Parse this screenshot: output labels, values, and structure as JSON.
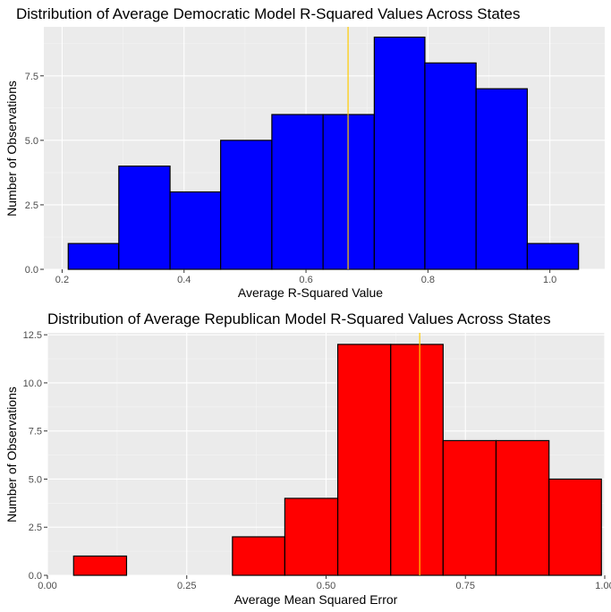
{
  "chart_data": [
    {
      "type": "bar",
      "title": "Distribution of Average Democratic Model R-Squared Values Across States",
      "xlabel": "Average R-Squared Value",
      "ylabel": "Number of Observations",
      "xlim": [
        0.17,
        1.09
      ],
      "ylim": [
        0,
        9.4
      ],
      "x_ticks": [
        0.2,
        0.4,
        0.6,
        0.8,
        1.0
      ],
      "x_tick_labels": [
        "0.2",
        "0.4",
        "0.6",
        "0.8",
        "1.0"
      ],
      "y_ticks": [
        0,
        2.5,
        5,
        7.5
      ],
      "y_tick_labels": [
        "0.0",
        "2.5",
        "5.0",
        "7.5"
      ],
      "bins": [
        {
          "x0": 0.21,
          "x1": 0.293,
          "count": 1
        },
        {
          "x0": 0.293,
          "x1": 0.377,
          "count": 4
        },
        {
          "x0": 0.377,
          "x1": 0.46,
          "count": 3
        },
        {
          "x0": 0.46,
          "x1": 0.544,
          "count": 5
        },
        {
          "x0": 0.544,
          "x1": 0.628,
          "count": 6
        },
        {
          "x0": 0.628,
          "x1": 0.712,
          "count": 6
        },
        {
          "x0": 0.712,
          "x1": 0.795,
          "count": 9
        },
        {
          "x0": 0.795,
          "x1": 0.879,
          "count": 8
        },
        {
          "x0": 0.879,
          "x1": 0.963,
          "count": 7
        },
        {
          "x0": 0.963,
          "x1": 1.047,
          "count": 1
        }
      ],
      "mean_line": 0.669,
      "fill": "#0000ff",
      "mean_line_color": "#ffcc00",
      "grid": true
    },
    {
      "type": "bar",
      "title": "Distribution of Average Republican Model R-Squared Values Across States",
      "xlabel": "Average Mean Squared Error",
      "ylabel": "Number of Observations",
      "xlim": [
        0.0,
        1.0
      ],
      "ylim": [
        0,
        12.6
      ],
      "x_ticks": [
        0,
        0.25,
        0.5,
        0.75,
        1.0
      ],
      "x_tick_labels": [
        "0.00",
        "0.25",
        "0.50",
        "0.75",
        "1.00"
      ],
      "y_ticks": [
        0,
        2.5,
        5,
        7.5,
        10,
        12.5
      ],
      "y_tick_labels": [
        "0.0",
        "2.5",
        "5.0",
        "7.5",
        "10.0",
        "12.5"
      ],
      "bins": [
        {
          "x0": 0.047,
          "x1": 0.142,
          "count": 1
        },
        {
          "x0": 0.142,
          "x1": 0.237,
          "count": 0
        },
        {
          "x0": 0.237,
          "x1": 0.332,
          "count": 0
        },
        {
          "x0": 0.332,
          "x1": 0.426,
          "count": 2
        },
        {
          "x0": 0.426,
          "x1": 0.521,
          "count": 4
        },
        {
          "x0": 0.521,
          "x1": 0.616,
          "count": 12
        },
        {
          "x0": 0.616,
          "x1": 0.71,
          "count": 12
        },
        {
          "x0": 0.71,
          "x1": 0.805,
          "count": 7
        },
        {
          "x0": 0.805,
          "x1": 0.9,
          "count": 7
        },
        {
          "x0": 0.9,
          "x1": 0.994,
          "count": 5
        }
      ],
      "mean_line": 0.668,
      "fill": "#ff0000",
      "mean_line_color": "#ffcc00",
      "grid": true
    }
  ]
}
